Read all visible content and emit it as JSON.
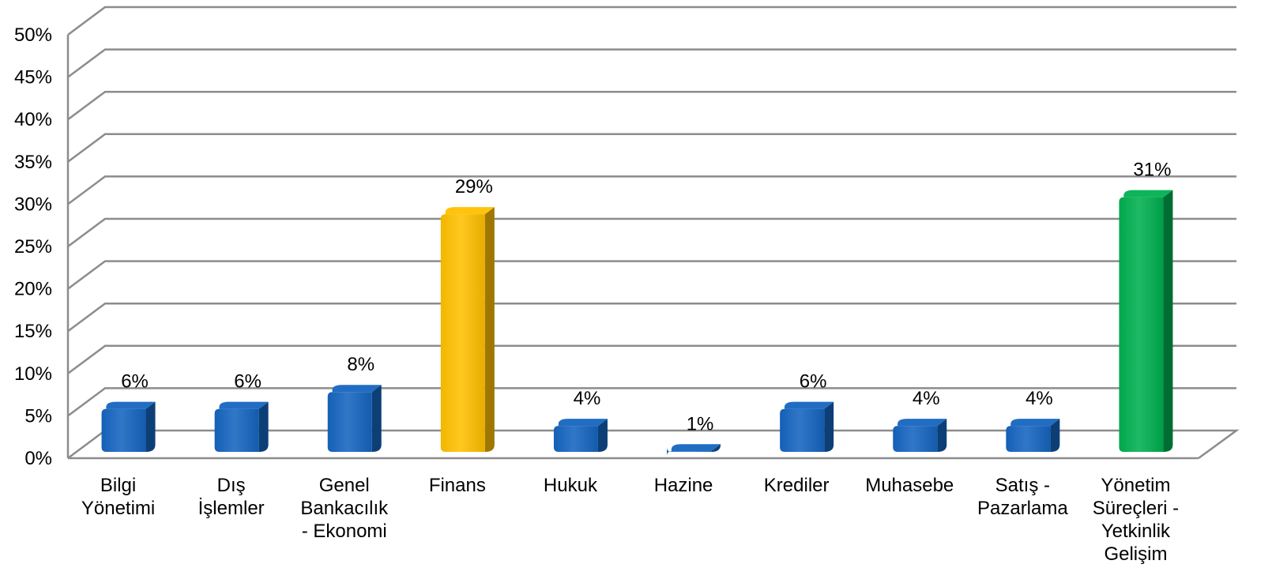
{
  "chart_data": {
    "type": "bar",
    "title": "",
    "xlabel": "",
    "ylabel": "",
    "ylim": [
      0,
      50
    ],
    "y_ticks": [
      0,
      5,
      10,
      15,
      20,
      25,
      30,
      35,
      40,
      45,
      50
    ],
    "y_tick_labels": [
      "0%",
      "5%",
      "10%",
      "15%",
      "20%",
      "25%",
      "30%",
      "35%",
      "40%",
      "45%",
      "50%"
    ],
    "grid": true,
    "legend": "none",
    "categories": [
      [
        "Bilgi",
        "Yönetimi"
      ],
      [
        "Dış",
        "İşlemler"
      ],
      [
        "Genel",
        "Bankacılık",
        "- Ekonomi"
      ],
      [
        "Finans"
      ],
      [
        "Hukuk"
      ],
      [
        "Hazine"
      ],
      [
        "Krediler"
      ],
      [
        "Muhasebe"
      ],
      [
        "Satış -",
        "Pazarlama"
      ],
      [
        "Yönetim",
        "Süreçleri -",
        "Yetkinlik",
        "Gelişim"
      ]
    ],
    "values": [
      6,
      6,
      8,
      29,
      4,
      1,
      6,
      4,
      4,
      31
    ],
    "data_labels": [
      "6%",
      "6%",
      "8%",
      "29%",
      "4%",
      "1%",
      "6%",
      "4%",
      "4%",
      "31%"
    ],
    "colors": [
      "#1565C0",
      "#1565C0",
      "#1565C0",
      "#FFC000",
      "#1565C0",
      "#1565C0",
      "#1565C0",
      "#1565C0",
      "#1565C0",
      "#00B050"
    ]
  }
}
